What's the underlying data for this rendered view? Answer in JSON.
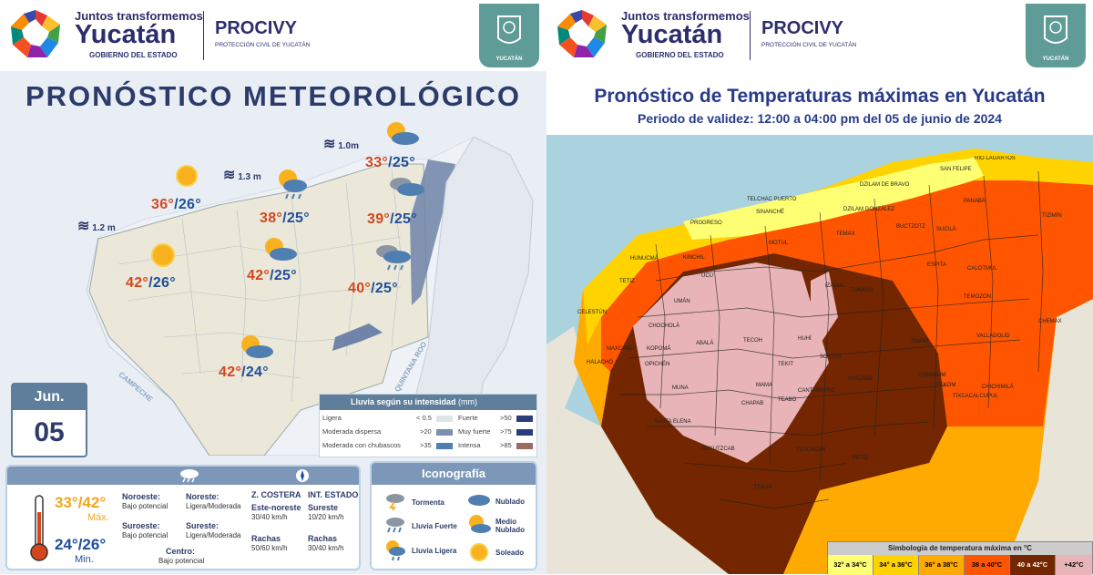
{
  "left": {
    "header": {
      "tagline": "Juntos transformemos",
      "brand": "Yucatán",
      "gov": "GOBIERNO DEL ESTADO",
      "agency": "PROCIVY",
      "agency_sub": "PROTECCIÓN CIVIL DE YUCATÁN",
      "crest_label": "YUCATÁN"
    },
    "title": "PRONÓSTICO METEOROLÓGICO",
    "waves": [
      "1.2 m",
      "1.3 m",
      "1.0m"
    ],
    "temps": [
      {
        "max": "36°",
        "min": "/26°",
        "icon": "sun-icon"
      },
      {
        "max": "38°",
        "min": "/25°",
        "icon": "sun-cloud-rain-icon"
      },
      {
        "max": "33°",
        "min": "/25°",
        "icon": "sun-cloud-icon"
      },
      {
        "max": "39°",
        "min": "/25°",
        "icon": "cloud-icon"
      },
      {
        "max": "42°",
        "min": "/26°",
        "icon": "sun-icon"
      },
      {
        "max": "42°",
        "min": "/25°",
        "icon": "sun-cloud-icon"
      },
      {
        "max": "40°",
        "min": "/25°",
        "icon": "cloud-rain-icon"
      },
      {
        "max": "42°",
        "min": "/24°",
        "icon": "sun-cloud-icon"
      }
    ],
    "states": [
      "CAMPECHE",
      "QUINTANA ROO"
    ],
    "calendar": {
      "month": "Jun.",
      "day": "05"
    },
    "rain_legend": {
      "title": "Lluvia según su intensidad",
      "unit": "(mm)",
      "rows": [
        {
          "label": "Ligera",
          "value": "< 0.5",
          "label2": "Fuerte",
          "value2": ">50"
        },
        {
          "label": "Moderada dispersa",
          "value": ">20",
          "label2": "Muy fuerte",
          "value2": ">75"
        },
        {
          "label": "Moderada con chubascos",
          "value": ">35",
          "label2": "Intensa",
          "value2": ">85"
        }
      ],
      "colors": [
        "#dfe5e3",
        "#7c8fb0",
        "#4f7fb1",
        "#2c3e78",
        "#2a3c80",
        "#9b6c64"
      ]
    },
    "summary": {
      "max": "33°/42°",
      "max_label": "Máx.",
      "min": "24°/26°",
      "min_label": "Min.",
      "winds": [
        {
          "zone": "Noroeste:",
          "level": "Bajo potencial"
        },
        {
          "zone": "Noreste:",
          "level": "Ligera/Moderada"
        },
        {
          "zone": "Suroeste:",
          "level": "Bajo potencial"
        },
        {
          "zone": "Sureste:",
          "level": "Ligera/Moderada"
        },
        {
          "zone": "Centro:",
          "level": "Bajo potencial"
        }
      ],
      "coast": {
        "title": "Z. COSTERA",
        "dir": "Este-noreste",
        "speed": "30/40 km/h",
        "gust_label": "Rachas",
        "gust": "50/60 km/h"
      },
      "inland": {
        "title": "INT. ESTADO",
        "dir": "Sureste",
        "speed": "10/20 km/h",
        "gust_label": "Rachas",
        "gust": "30/40 km/h"
      }
    },
    "iconography": {
      "title": "Iconografía",
      "items": [
        "Tormenta",
        "Lluvia Fuerte",
        "Lluvia Ligera",
        "Nublado",
        "Medio Nublado",
        "Soleado"
      ]
    }
  },
  "right": {
    "title": "Pronóstico de Temperaturas máximas en Yucatán",
    "subtitle": "Periodo de validez: 12:00 a 04:00 pm del 05 de junio de 2024",
    "municipalities": [
      "RIO LAGARTOS",
      "SAN FELIPE",
      "DZILAM DE BRAVO",
      "TELCHAC PUERTO",
      "SINANCHÉ",
      "DZILAM GONZÁLEZ",
      "PANABÁ",
      "TIZIMÍN",
      "PROGRESO",
      "BUCTZOTZ",
      "SUCILÁ",
      "HUNUCMÁ",
      "MOTUL",
      "TEMAX",
      "ESPITA",
      "CALOTMUL",
      "TETIZ",
      "UCÚ",
      "CELESTÚN",
      "IZAMAL",
      "TUNKÁS",
      "TEMOZÓN",
      "UMÁN",
      "CHEMAX",
      "CHOCHOLÁ",
      "VALLADOLID",
      "MAXCANÚ",
      "ABALÁ",
      "TECOH",
      "HUHÍ",
      "SOTUTA",
      "KOPOMÁ",
      "OPICHÉN",
      "TEKIT",
      "YAXCABÁ",
      "CHANKOM",
      "HALACHÓ",
      "MUNA",
      "TEABO",
      "TIXCACALCUPUL",
      "CHICHIMILÁ",
      "SANTA ELENA",
      "TZUCACAB",
      "PETO",
      "OXKUTZCAB",
      "TEKAX",
      "TINUM",
      "TEKOM",
      "KINCHIL",
      "MAMA",
      "CHAPAB",
      "CANTAMAYEC"
    ],
    "legend": {
      "title": "Simbología de temperatura máxima en °C",
      "classes": [
        {
          "label": "32° a 34°C",
          "color": "#ffff73"
        },
        {
          "label": "34° a 36°C",
          "color": "#ffd300"
        },
        {
          "label": "36° a 38°C",
          "color": "#ffaa00"
        },
        {
          "label": "38 a 40°C",
          "color": "#ff5500"
        },
        {
          "label": "40 a 42°C",
          "color": "#732600"
        },
        {
          "label": "+42°C",
          "color": "#e8b4b8"
        }
      ]
    }
  }
}
